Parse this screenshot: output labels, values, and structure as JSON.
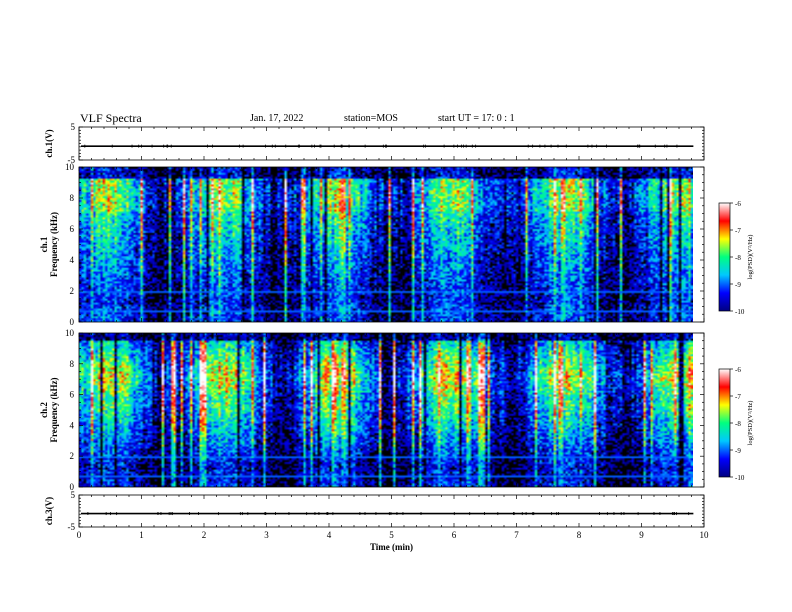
{
  "header": {
    "title": "VLF Spectra",
    "date": "Jan. 17, 2022",
    "station_label": "station=",
    "station": "MOS",
    "start_label": "start  UT  =",
    "start_time": "17: 0  : 1"
  },
  "chart_data": [
    {
      "type": "line",
      "name": "ch1-waveform",
      "ylabel": "ch.1(V)",
      "ylim": [
        -5,
        5
      ],
      "yticks": [
        "5",
        "-5"
      ],
      "value": -0.8
    },
    {
      "type": "heatmap",
      "name": "ch1-spectrogram",
      "ylabel": "ch.1\nFrequency (kHz)",
      "ylim": [
        0,
        10
      ],
      "yticks": [
        "0",
        "2",
        "4",
        "6",
        "8",
        "10"
      ],
      "colorbar": {
        "label": "log(PSD)(V²/Hz)",
        "range": [
          -10,
          -6
        ],
        "ticks": [
          "-6",
          "-7",
          "-8",
          "-9",
          "-10"
        ]
      }
    },
    {
      "type": "heatmap",
      "name": "ch2-spectrogram",
      "ylabel": "ch.2\nFrequency (kHz)",
      "ylim": [
        0,
        10
      ],
      "yticks": [
        "0",
        "2",
        "4",
        "6",
        "8",
        "10"
      ],
      "colorbar": {
        "label": "log(PSD)(V²/Hz)",
        "range": [
          -10,
          -6
        ],
        "ticks": [
          "-6",
          "-7",
          "-8",
          "-9",
          "-10"
        ]
      }
    },
    {
      "type": "line",
      "name": "ch3-waveform",
      "ylabel": "ch.3(V)",
      "ylim": [
        -5,
        5
      ],
      "yticks": [
        "5",
        "-5"
      ],
      "value": -0.8
    }
  ],
  "x_axis": {
    "label": "Time (min)",
    "xlim": [
      0,
      10
    ],
    "ticks": [
      "0",
      "1",
      "2",
      "3",
      "4",
      "5",
      "6",
      "7",
      "8",
      "9",
      "10"
    ],
    "data_end": 9.83
  },
  "colors": {
    "colormap": [
      "#000080",
      "#0000ff",
      "#00c8ff",
      "#00ff80",
      "#ffff00",
      "#ff0000",
      "#ffffff"
    ]
  }
}
